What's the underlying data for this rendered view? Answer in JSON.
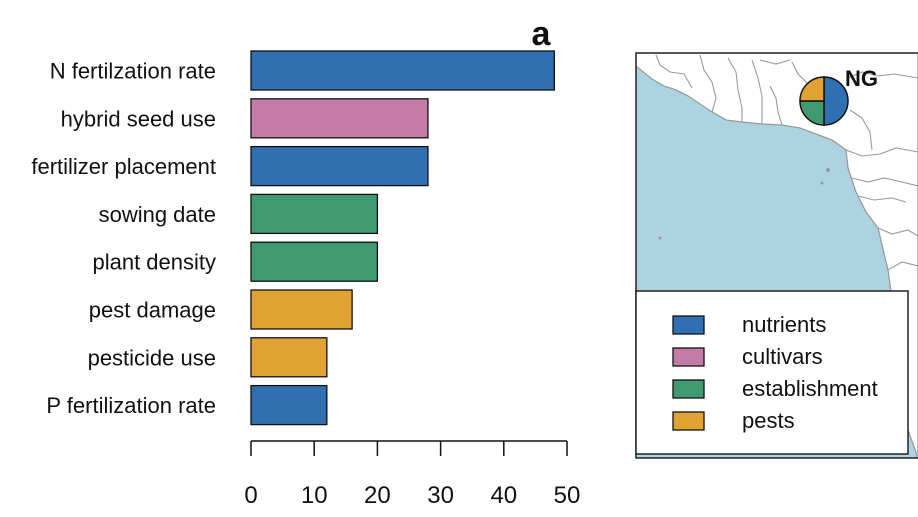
{
  "chart_data": {
    "type": "bar",
    "orientation": "horizontal",
    "panel_label": "a",
    "categories": [
      "N fertilzation rate",
      "hybrid seed use",
      "fertilizer placement",
      "sowing date",
      "plant density",
      "pest damage",
      "pesticide use",
      "P fertilization rate"
    ],
    "values": [
      48,
      28,
      28,
      20,
      20,
      16,
      12,
      12
    ],
    "groups": [
      "nutrients",
      "cultivars",
      "nutrients",
      "establishment",
      "establishment",
      "pests",
      "pests",
      "nutrients"
    ],
    "xlim": [
      0,
      50
    ],
    "xticks": [
      0,
      10,
      20,
      30,
      40,
      50
    ],
    "legend": {
      "placement": "bottom-right",
      "entries": [
        {
          "label": "nutrients",
          "color": "#2f6fb2"
        },
        {
          "label": "cultivars",
          "color": "#c47ba8"
        },
        {
          "label": "establishment",
          "color": "#3f9a70"
        },
        {
          "label": "pests",
          "color": "#e0a232"
        }
      ]
    },
    "map_inset": {
      "region_label": "NG",
      "pie_slices": [
        {
          "group": "nutrients",
          "value": 50
        },
        {
          "group": "establishment",
          "value": 25
        },
        {
          "group": "pests",
          "value": 25
        }
      ]
    }
  },
  "colors": {
    "nutrients": "#2f6fb2",
    "cultivars": "#c47ba8",
    "establishment": "#3f9a70",
    "pests": "#e0a232",
    "ocean": "#add3e3",
    "land": "#ffffff",
    "border": "#9a9a9a"
  }
}
